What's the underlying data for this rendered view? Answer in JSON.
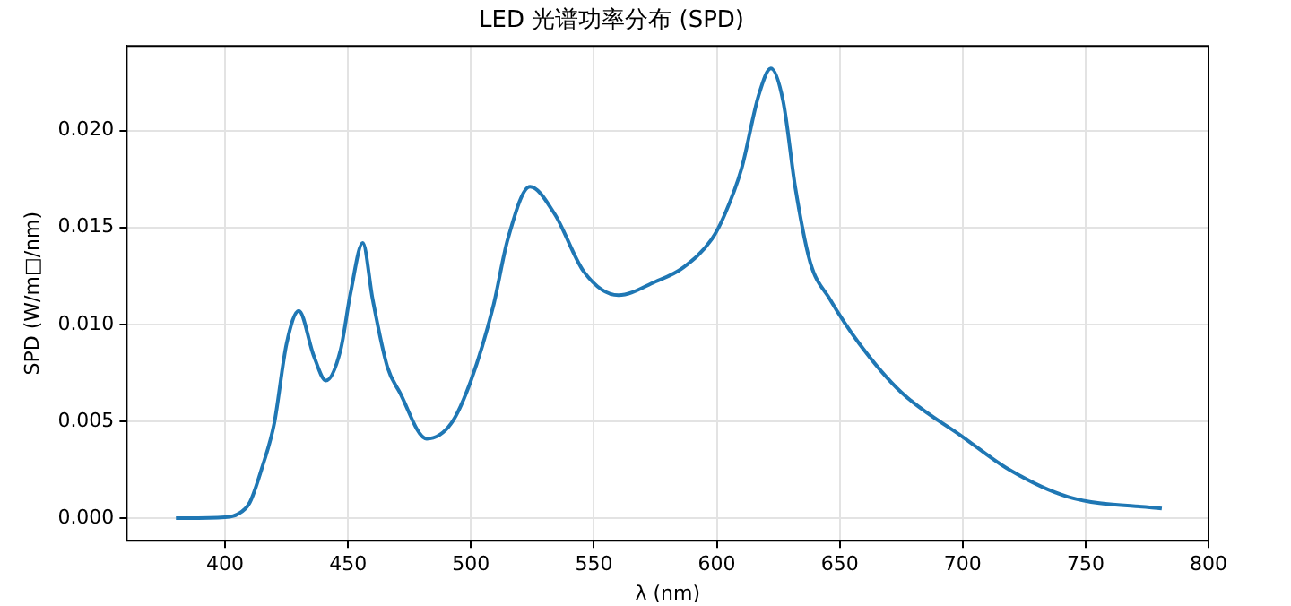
{
  "chart_data": {
    "type": "line",
    "title": "LED 光谱功率分布 (SPD)",
    "xlabel": "λ (nm)",
    "ylabel": "SPD (W/m□/nm)",
    "xlim": [
      360,
      800
    ],
    "xticks": [
      400,
      450,
      500,
      550,
      600,
      650,
      700,
      750,
      800
    ],
    "ylim": [
      -0.00116,
      0.02436
    ],
    "yticks": [
      {
        "value": 0,
        "label": "0.000"
      },
      {
        "value": 0.005,
        "label": "0.005"
      },
      {
        "value": 0.01,
        "label": "0.010"
      },
      {
        "value": 0.015,
        "label": "0.015"
      },
      {
        "value": 0.02,
        "label": "0.020"
      }
    ],
    "grid": true,
    "legend": false,
    "marker": "none",
    "line_style": "solid",
    "series": [
      {
        "color": "#1f77b4",
        "x": [
          380,
          400,
          405,
          410,
          415,
          420,
          425,
          430,
          436,
          441,
          447,
          451,
          456,
          460,
          466,
          471,
          482,
          492,
          500,
          509,
          515,
          524,
          534,
          546,
          560,
          575,
          586,
          598,
          603,
          610,
          617,
          622,
          627,
          632,
          638,
          646,
          658,
          675,
          700,
          719,
          743,
          781
        ],
        "values": [
          0,
          5e-05,
          0.0002,
          0.0008,
          0.0026,
          0.0049,
          0.009,
          0.0107,
          0.0084,
          0.0071,
          0.0087,
          0.0116,
          0.0142,
          0.0113,
          0.0078,
          0.0065,
          0.0041,
          0.0049,
          0.0071,
          0.0109,
          0.0144,
          0.0171,
          0.0157,
          0.0127,
          0.0115,
          0.0122,
          0.0129,
          0.0144,
          0.0156,
          0.018,
          0.0218,
          0.0232,
          0.0215,
          0.017,
          0.0132,
          0.0113,
          0.009,
          0.0065,
          0.0042,
          0.0025,
          0.0011,
          0.0005
        ]
      }
    ]
  }
}
